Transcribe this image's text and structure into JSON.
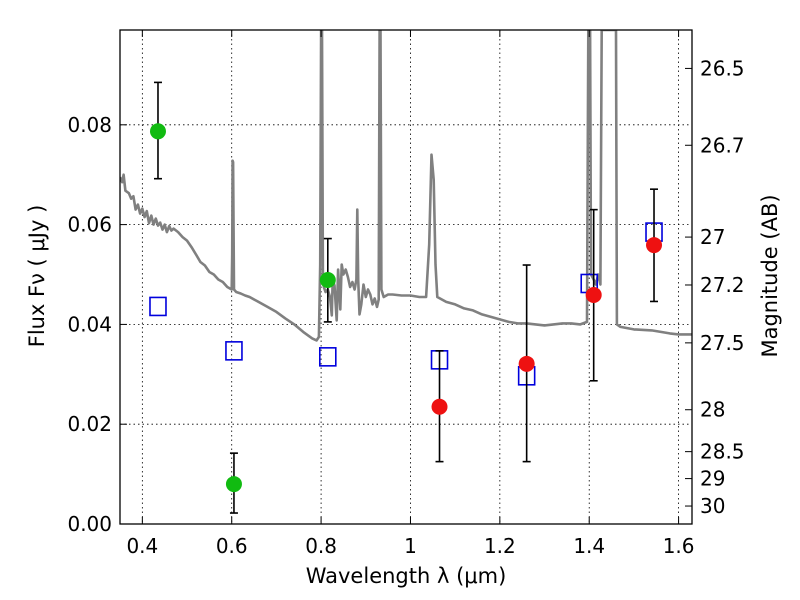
{
  "chart_data": {
    "type": "scatter",
    "xlabel": "Wavelength  λ (μm)",
    "ylabel": "Flux  Fν  ( μJy )",
    "ylabel_right": "Magnitude (AB)",
    "xlim": [
      0.35,
      1.63
    ],
    "ylim": [
      0.0,
      0.099
    ],
    "grid": true,
    "x_ticks": [
      {
        "value": 0.4,
        "label": "0.4"
      },
      {
        "value": 0.6,
        "label": "0.6"
      },
      {
        "value": 0.8,
        "label": "0.8"
      },
      {
        "value": 1.0,
        "label": "1"
      },
      {
        "value": 1.2,
        "label": "1.2"
      },
      {
        "value": 1.4,
        "label": "1.4"
      },
      {
        "value": 1.6,
        "label": "1.6"
      }
    ],
    "y_ticks": [
      {
        "value": 0.0,
        "label": "0.00"
      },
      {
        "value": 0.02,
        "label": "0.02"
      },
      {
        "value": 0.04,
        "label": "0.04"
      },
      {
        "value": 0.06,
        "label": "0.06"
      },
      {
        "value": 0.08,
        "label": "0.08"
      }
    ],
    "right_ticks": [
      {
        "label": "26.5",
        "flux": 0.0913
      },
      {
        "label": "26.7",
        "flux": 0.0759
      },
      {
        "label": "27",
        "flux": 0.0575
      },
      {
        "label": "27.2",
        "flux": 0.0479
      },
      {
        "label": "27.5",
        "flux": 0.0363
      },
      {
        "label": "28",
        "flux": 0.0229
      },
      {
        "label": "28.5",
        "flux": 0.0145
      },
      {
        "label": "29",
        "flux": 0.0091
      },
      {
        "label": "30",
        "flux": 0.0036
      }
    ],
    "colors": {
      "green": "#11bb11",
      "red": "#ee1111",
      "box": "#0000dd",
      "sed": "#808080",
      "error": "#000000"
    },
    "series": [
      {
        "name": "green detections",
        "marker": "circle",
        "color": "green",
        "points": [
          {
            "x": 0.435,
            "y": 0.0787,
            "yerr_low": 0.0692,
            "yerr_high": 0.0885
          },
          {
            "x": 0.605,
            "y": 0.008,
            "yerr_low": 0.0022,
            "yerr_high": 0.0142
          },
          {
            "x": 0.815,
            "y": 0.0489,
            "yerr_low": 0.0405,
            "yerr_high": 0.0572
          }
        ]
      },
      {
        "name": "red detections",
        "marker": "circle",
        "color": "red",
        "points": [
          {
            "x": 1.065,
            "y": 0.0235,
            "yerr_low": 0.0125,
            "yerr_high": 0.0347
          },
          {
            "x": 1.26,
            "y": 0.0321,
            "yerr_low": 0.0125,
            "yerr_high": 0.0519
          },
          {
            "x": 1.41,
            "y": 0.0459,
            "yerr_low": 0.0287,
            "yerr_high": 0.063
          },
          {
            "x": 1.545,
            "y": 0.0559,
            "yerr_low": 0.0446,
            "yerr_high": 0.0671
          }
        ]
      },
      {
        "name": "model photometry",
        "marker": "square",
        "color": "box",
        "points": [
          {
            "x": 0.435,
            "y": 0.0436
          },
          {
            "x": 0.605,
            "y": 0.0347
          },
          {
            "x": 0.815,
            "y": 0.0335
          },
          {
            "x": 1.065,
            "y": 0.0329
          },
          {
            "x": 1.26,
            "y": 0.0297
          },
          {
            "x": 1.4,
            "y": 0.0482
          },
          {
            "x": 1.545,
            "y": 0.0585
          }
        ]
      },
      {
        "name": "SED model",
        "marker": "line",
        "color": "sed",
        "points": [
          [
            0.35,
            0.0695
          ],
          [
            0.355,
            0.0685
          ],
          [
            0.358,
            0.07
          ],
          [
            0.362,
            0.0668
          ],
          [
            0.37,
            0.0663
          ],
          [
            0.375,
            0.0652
          ],
          [
            0.38,
            0.0657
          ],
          [
            0.385,
            0.063
          ],
          [
            0.39,
            0.064
          ],
          [
            0.395,
            0.0622
          ],
          [
            0.4,
            0.0632
          ],
          [
            0.405,
            0.0615
          ],
          [
            0.41,
            0.0627
          ],
          [
            0.415,
            0.0603
          ],
          [
            0.42,
            0.0618
          ],
          [
            0.425,
            0.06
          ],
          [
            0.43,
            0.0612
          ],
          [
            0.435,
            0.0598
          ],
          [
            0.44,
            0.0604
          ],
          [
            0.445,
            0.059
          ],
          [
            0.45,
            0.06
          ],
          [
            0.455,
            0.0585
          ],
          [
            0.46,
            0.0597
          ],
          [
            0.465,
            0.0588
          ],
          [
            0.47,
            0.0592
          ],
          [
            0.48,
            0.0585
          ],
          [
            0.49,
            0.0575
          ],
          [
            0.5,
            0.0568
          ],
          [
            0.51,
            0.0555
          ],
          [
            0.52,
            0.054
          ],
          [
            0.53,
            0.0525
          ],
          [
            0.54,
            0.0518
          ],
          [
            0.55,
            0.0505
          ],
          [
            0.56,
            0.05
          ],
          [
            0.57,
            0.049
          ],
          [
            0.58,
            0.0485
          ],
          [
            0.59,
            0.0475
          ],
          [
            0.6,
            0.047
          ],
          [
            0.601,
            0.054
          ],
          [
            0.602,
            0.0728
          ],
          [
            0.603,
            0.0725
          ],
          [
            0.605,
            0.047
          ],
          [
            0.61,
            0.0465
          ],
          [
            0.62,
            0.0462
          ],
          [
            0.63,
            0.0458
          ],
          [
            0.64,
            0.0455
          ],
          [
            0.66,
            0.0445
          ],
          [
            0.68,
            0.0435
          ],
          [
            0.7,
            0.0425
          ],
          [
            0.72,
            0.0412
          ],
          [
            0.74,
            0.04
          ],
          [
            0.76,
            0.0385
          ],
          [
            0.78,
            0.0372
          ],
          [
            0.79,
            0.0368
          ],
          [
            0.795,
            0.0375
          ],
          [
            0.798,
            0.052
          ],
          [
            0.8,
            0.099
          ],
          [
            0.802,
            0.099
          ],
          [
            0.804,
            0.05
          ],
          [
            0.806,
            0.0475
          ],
          [
            0.81,
            0.0465
          ],
          [
            0.815,
            0.047
          ],
          [
            0.82,
            0.0455
          ],
          [
            0.824,
            0.0418
          ],
          [
            0.826,
            0.049
          ],
          [
            0.83,
            0.0478
          ],
          [
            0.835,
            0.0408
          ],
          [
            0.838,
            0.051
          ],
          [
            0.843,
            0.043
          ],
          [
            0.846,
            0.052
          ],
          [
            0.85,
            0.05
          ],
          [
            0.855,
            0.051
          ],
          [
            0.86,
            0.0495
          ],
          [
            0.865,
            0.0475
          ],
          [
            0.87,
            0.0485
          ],
          [
            0.875,
            0.047
          ],
          [
            0.879,
            0.049
          ],
          [
            0.881,
            0.063
          ],
          [
            0.883,
            0.049
          ],
          [
            0.886,
            0.042
          ],
          [
            0.89,
            0.044
          ],
          [
            0.895,
            0.048
          ],
          [
            0.9,
            0.0455
          ],
          [
            0.905,
            0.047
          ],
          [
            0.91,
            0.046
          ],
          [
            0.915,
            0.044
          ],
          [
            0.92,
            0.0452
          ],
          [
            0.925,
            0.0435
          ],
          [
            0.929,
            0.045
          ],
          [
            0.931,
            0.099
          ],
          [
            0.933,
            0.099
          ],
          [
            0.935,
            0.047
          ],
          [
            0.94,
            0.0455
          ],
          [
            0.95,
            0.046
          ],
          [
            0.96,
            0.046
          ],
          [
            0.98,
            0.0458
          ],
          [
            1.0,
            0.0458
          ],
          [
            1.02,
            0.0455
          ],
          [
            1.035,
            0.0455
          ],
          [
            1.042,
            0.056
          ],
          [
            1.047,
            0.074
          ],
          [
            1.052,
            0.069
          ],
          [
            1.056,
            0.052
          ],
          [
            1.06,
            0.0455
          ],
          [
            1.08,
            0.0445
          ],
          [
            1.1,
            0.044
          ],
          [
            1.12,
            0.0432
          ],
          [
            1.14,
            0.0428
          ],
          [
            1.16,
            0.042
          ],
          [
            1.18,
            0.0415
          ],
          [
            1.2,
            0.041
          ],
          [
            1.22,
            0.0405
          ],
          [
            1.24,
            0.0402
          ],
          [
            1.26,
            0.0402
          ],
          [
            1.28,
            0.04
          ],
          [
            1.3,
            0.0398
          ],
          [
            1.32,
            0.04
          ],
          [
            1.34,
            0.0402
          ],
          [
            1.36,
            0.0402
          ],
          [
            1.38,
            0.04
          ],
          [
            1.395,
            0.0405
          ],
          [
            1.398,
            0.099
          ],
          [
            1.402,
            0.099
          ],
          [
            1.404,
            0.05
          ],
          [
            1.41,
            0.049
          ],
          [
            1.415,
            0.048
          ],
          [
            1.42,
            0.05
          ],
          [
            1.425,
            0.048
          ],
          [
            1.428,
            0.099
          ],
          [
            1.46,
            0.099
          ],
          [
            1.462,
            0.04
          ],
          [
            1.47,
            0.0395
          ],
          [
            1.5,
            0.039
          ],
          [
            1.54,
            0.0388
          ],
          [
            1.58,
            0.0382
          ],
          [
            1.6,
            0.038
          ],
          [
            1.63,
            0.038
          ]
        ]
      }
    ]
  }
}
